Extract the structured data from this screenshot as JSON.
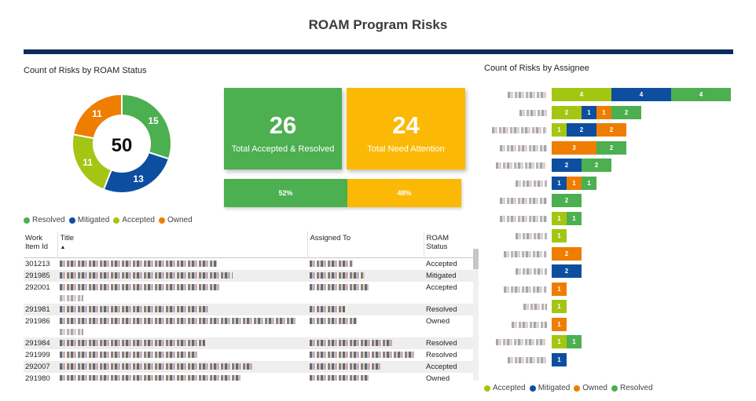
{
  "page": {
    "title": "ROAM Program Risks"
  },
  "colors": {
    "resolved": "#4caf50",
    "mitigated": "#0e4ea0",
    "accepted": "#a4c613",
    "owned": "#ef7d00",
    "need_attention": "#fbb905",
    "rule": "#0e2a5c"
  },
  "donut": {
    "title": "Count of Risks by ROAM Status",
    "total": "50",
    "slices": [
      {
        "name": "Resolved",
        "value": 15,
        "color": "#4caf50"
      },
      {
        "name": "Mitigated",
        "value": 13,
        "color": "#0e4ea0"
      },
      {
        "name": "Accepted",
        "value": 11,
        "color": "#a4c613"
      },
      {
        "name": "Owned",
        "value": 11,
        "color": "#ef7d00"
      }
    ],
    "legend": [
      "Resolved",
      "Mitigated",
      "Accepted",
      "Owned"
    ]
  },
  "kpis": {
    "accepted_resolved": {
      "value": "26",
      "label": "Total Accepted & Resolved"
    },
    "need_attention": {
      "value": "24",
      "label": "Total Need Attention"
    },
    "split": {
      "left_label": "52%",
      "right_label": "48%",
      "left_fraction": 0.52
    }
  },
  "table": {
    "headers": {
      "id": "Work Item Id",
      "title": "Title",
      "assigned": "Assigned To",
      "status": "ROAM Status"
    },
    "rows": [
      {
        "id": "301213",
        "status": "Accepted",
        "tw": 200,
        "aw": 55,
        "extra": false
      },
      {
        "id": "291985",
        "status": "Mitigated",
        "tw": 220,
        "aw": 70,
        "extra": false
      },
      {
        "id": "292001",
        "status": "Accepted",
        "tw": 205,
        "aw": 75,
        "extra": true
      },
      {
        "id": "291981",
        "status": "Resolved",
        "tw": 190,
        "aw": 45,
        "extra": false
      },
      {
        "id": "291986",
        "status": "Owned",
        "tw": 300,
        "aw": 60,
        "extra": true
      },
      {
        "id": "291984",
        "status": "Resolved",
        "tw": 185,
        "aw": 105,
        "extra": false
      },
      {
        "id": "291999",
        "status": "Resolved",
        "tw": 175,
        "aw": 135,
        "extra": false
      },
      {
        "id": "292007",
        "status": "Accepted",
        "tw": 245,
        "aw": 90,
        "extra": false
      },
      {
        "id": "291980",
        "status": "Owned",
        "tw": 230,
        "aw": 75,
        "extra": false
      }
    ]
  },
  "chart_data": {
    "type": "bar",
    "orientation": "horizontal",
    "stacked": true,
    "title": "Count of Risks by Assignee",
    "series": [
      {
        "name": "Accepted",
        "color": "#a4c613",
        "values": [
          4,
          2,
          1,
          0,
          0,
          0,
          0,
          1,
          1,
          0,
          0,
          0,
          1,
          0,
          1,
          0
        ]
      },
      {
        "name": "Mitigated",
        "color": "#0e4ea0",
        "values": [
          4,
          1,
          2,
          0,
          2,
          1,
          0,
          0,
          0,
          0,
          2,
          0,
          0,
          0,
          0,
          1
        ]
      },
      {
        "name": "Owned",
        "color": "#ef7d00",
        "values": [
          0,
          1,
          2,
          3,
          0,
          1,
          0,
          0,
          0,
          2,
          0,
          1,
          0,
          1,
          0,
          0
        ]
      },
      {
        "name": "Resolved",
        "color": "#4caf50",
        "values": [
          4,
          2,
          0,
          2,
          2,
          1,
          2,
          1,
          0,
          0,
          0,
          0,
          0,
          0,
          1,
          0
        ]
      }
    ],
    "legend": {
      "position": "bottom",
      "entries": [
        "Accepted",
        "Mitigated",
        "Owned",
        "Resolved"
      ]
    }
  }
}
